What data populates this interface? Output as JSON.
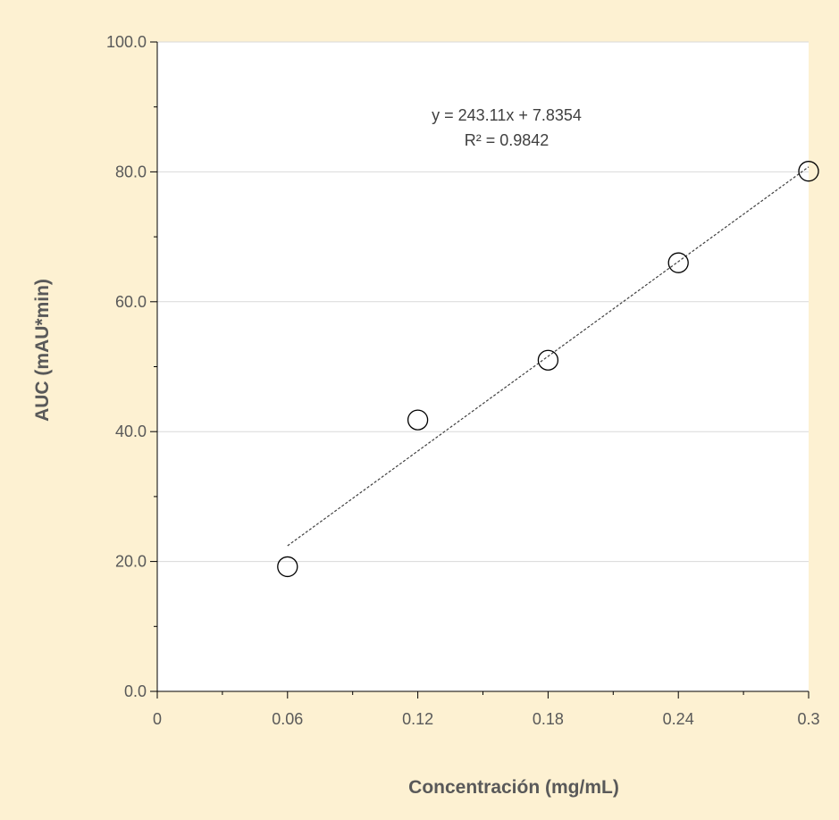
{
  "chart_data": {
    "type": "scatter",
    "title": "",
    "xlabel": "Concentración (mg/mL)",
    "ylabel": "AUC (mAU*min)",
    "xlim": [
      0,
      0.3
    ],
    "ylim": [
      0,
      100
    ],
    "x_ticks": [
      "0",
      "0.06",
      "0.12",
      "0.18",
      "0.24",
      "0.3"
    ],
    "y_ticks": [
      "0.0",
      "20.0",
      "40.0",
      "60.0",
      "80.0",
      "100.0"
    ],
    "x": [
      0.06,
      0.12,
      0.18,
      0.24,
      0.3
    ],
    "y": [
      19.2,
      41.8,
      51.0,
      66.0,
      80.1
    ],
    "trendline": {
      "type": "linear",
      "slope": 243.11,
      "intercept": 7.8354,
      "x_range": [
        0.06,
        0.3
      ],
      "equation_label": "y = 243.11x + 7.8354",
      "r2_label": "R² = 0.9842"
    },
    "grid": "horizontal",
    "legend": "none",
    "colors": {
      "background": "#fdf1d2",
      "plot_area": "#ffffff",
      "marker_edge": "#000000",
      "trendline": "#404040",
      "gridline": "#d9d9d9"
    }
  }
}
